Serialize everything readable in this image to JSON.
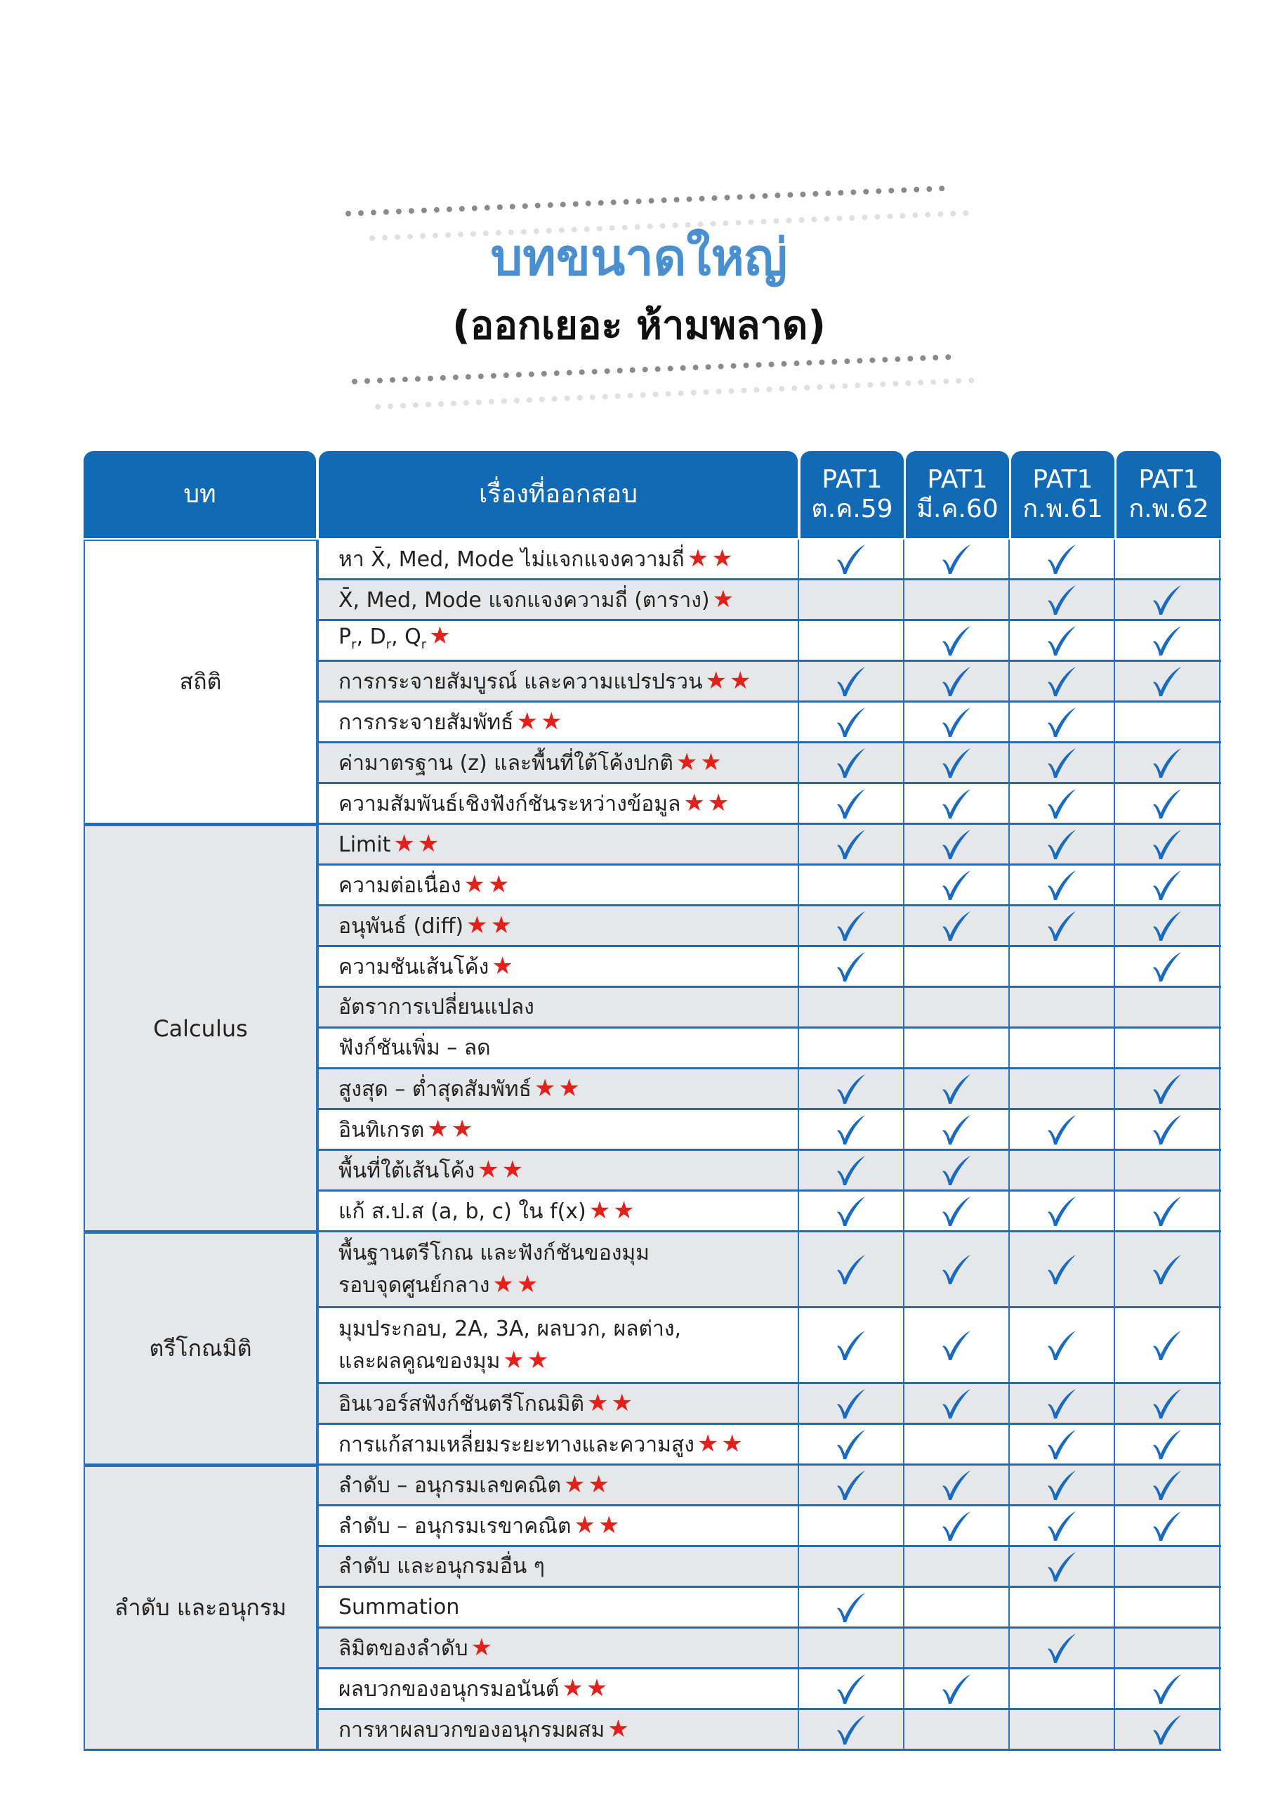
{
  "title": "บทขนาดใหญ่",
  "subtitle": "(ออกเยอะ ห้ามพลาด)",
  "colors": {
    "header": "#136ab4",
    "check": "#1a6bbf",
    "star": "#e2211c",
    "title": "#4a90d0",
    "row_alt": "#e6e7e9"
  },
  "header": {
    "chapter": "บท",
    "topic": "เรื่องที่ออกสอบ",
    "exams": [
      {
        "name": "PAT1",
        "date": "ต.ค.59"
      },
      {
        "name": "PAT1",
        "date": "มี.ค.60"
      },
      {
        "name": "PAT1",
        "date": "ก.พ.61"
      },
      {
        "name": "PAT1",
        "date": "ก.พ.62"
      }
    ]
  },
  "sections": [
    {
      "chapter": "สถิติ",
      "rows": [
        {
          "topic": "หา X̄, Med, Mode ไม่แจกแจงความถี่",
          "stars": 2,
          "checks": [
            1,
            1,
            1,
            0
          ]
        },
        {
          "topic": "X̄, Med, Mode แจกแจงความถี่ (ตาราง)",
          "stars": 1,
          "checks": [
            0,
            0,
            1,
            1
          ]
        },
        {
          "topic_parts": [
            [
              "P",
              "r"
            ],
            [
              ", D",
              "r"
            ],
            [
              ", Q",
              "r"
            ]
          ],
          "stars": 1,
          "checks": [
            0,
            1,
            1,
            1
          ]
        },
        {
          "topic": "การกระจายสัมบูรณ์ และความแปรปรวน",
          "stars": 2,
          "checks": [
            1,
            1,
            1,
            1
          ]
        },
        {
          "topic": "การกระจายสัมพัทธ์",
          "stars": 2,
          "checks": [
            1,
            1,
            1,
            0
          ]
        },
        {
          "topic": "ค่ามาตรฐาน (z) และพื้นที่ใต้โค้งปกติ",
          "stars": 2,
          "checks": [
            1,
            1,
            1,
            1
          ]
        },
        {
          "topic": "ความสัมพันธ์เชิงฟังก์ชันระหว่างข้อมูล",
          "stars": 2,
          "checks": [
            1,
            1,
            1,
            1
          ]
        }
      ]
    },
    {
      "chapter": "Calculus",
      "rows": [
        {
          "topic": "Limit",
          "stars": 2,
          "checks": [
            1,
            1,
            1,
            1
          ]
        },
        {
          "topic": "ความต่อเนื่อง",
          "stars": 2,
          "checks": [
            0,
            1,
            1,
            1
          ]
        },
        {
          "topic": "อนุพันธ์ (diff)",
          "stars": 2,
          "checks": [
            1,
            1,
            1,
            1
          ]
        },
        {
          "topic": "ความชันเส้นโค้ง",
          "stars": 1,
          "checks": [
            1,
            0,
            0,
            1
          ]
        },
        {
          "topic": "อัตราการเปลี่ยนแปลง",
          "stars": 0,
          "checks": [
            0,
            0,
            0,
            0
          ]
        },
        {
          "topic": "ฟังก์ชันเพิ่ม – ลด",
          "stars": 0,
          "checks": [
            0,
            0,
            0,
            0
          ]
        },
        {
          "topic": "สูงสุด – ต่ำสุดสัมพัทธ์",
          "stars": 2,
          "checks": [
            1,
            1,
            0,
            1
          ]
        },
        {
          "topic": "อินทิเกรต",
          "stars": 2,
          "checks": [
            1,
            1,
            1,
            1
          ]
        },
        {
          "topic": "พื้นที่ใต้เส้นโค้ง",
          "stars": 2,
          "checks": [
            1,
            1,
            0,
            0
          ]
        },
        {
          "topic": "แก้ ส.ป.ส (a, b, c) ใน f(x)",
          "stars": 2,
          "checks": [
            1,
            1,
            1,
            1
          ]
        }
      ]
    },
    {
      "chapter": "ตรีโกณมิติ",
      "rows": [
        {
          "topic": "พื้นฐานตรีโกณ และฟังก์ชันของมุม",
          "topic2": "รอบจุดศูนย์กลาง",
          "stars": 2,
          "checks": [
            1,
            1,
            1,
            1
          ]
        },
        {
          "topic": "มุมประกอบ, 2A, 3A, ผลบวก, ผลต่าง,",
          "topic2": "และผลคูณของมุม",
          "stars": 2,
          "checks": [
            1,
            1,
            1,
            1
          ]
        },
        {
          "topic": "อินเวอร์สฟังก์ชันตรีโกณมิติ",
          "stars": 2,
          "checks": [
            1,
            1,
            1,
            1
          ]
        },
        {
          "topic": "การแก้สามเหลี่ยมระยะทางและความสูง",
          "stars": 2,
          "checks": [
            1,
            0,
            1,
            1
          ]
        }
      ]
    },
    {
      "chapter": "ลำดับ และอนุกรม",
      "rows": [
        {
          "topic": "ลำดับ – อนุกรมเลขคณิต",
          "stars": 2,
          "checks": [
            1,
            1,
            1,
            1
          ]
        },
        {
          "topic": "ลำดับ – อนุกรมเรขาคณิต",
          "stars": 2,
          "checks": [
            0,
            1,
            1,
            1
          ]
        },
        {
          "topic": "ลำดับ และอนุกรมอื่น ๆ",
          "stars": 0,
          "checks": [
            0,
            0,
            1,
            0
          ]
        },
        {
          "topic": "Summation",
          "stars": 0,
          "checks": [
            1,
            0,
            0,
            0
          ]
        },
        {
          "topic": "ลิมิตของลำดับ",
          "stars": 1,
          "checks": [
            0,
            0,
            1,
            0
          ]
        },
        {
          "topic": "ผลบวกของอนุกรมอนันต์",
          "stars": 2,
          "checks": [
            1,
            1,
            0,
            1
          ]
        },
        {
          "topic": "การหาผลบวกของอนุกรมผสม",
          "stars": 1,
          "checks": [
            1,
            0,
            0,
            1
          ]
        }
      ]
    }
  ]
}
